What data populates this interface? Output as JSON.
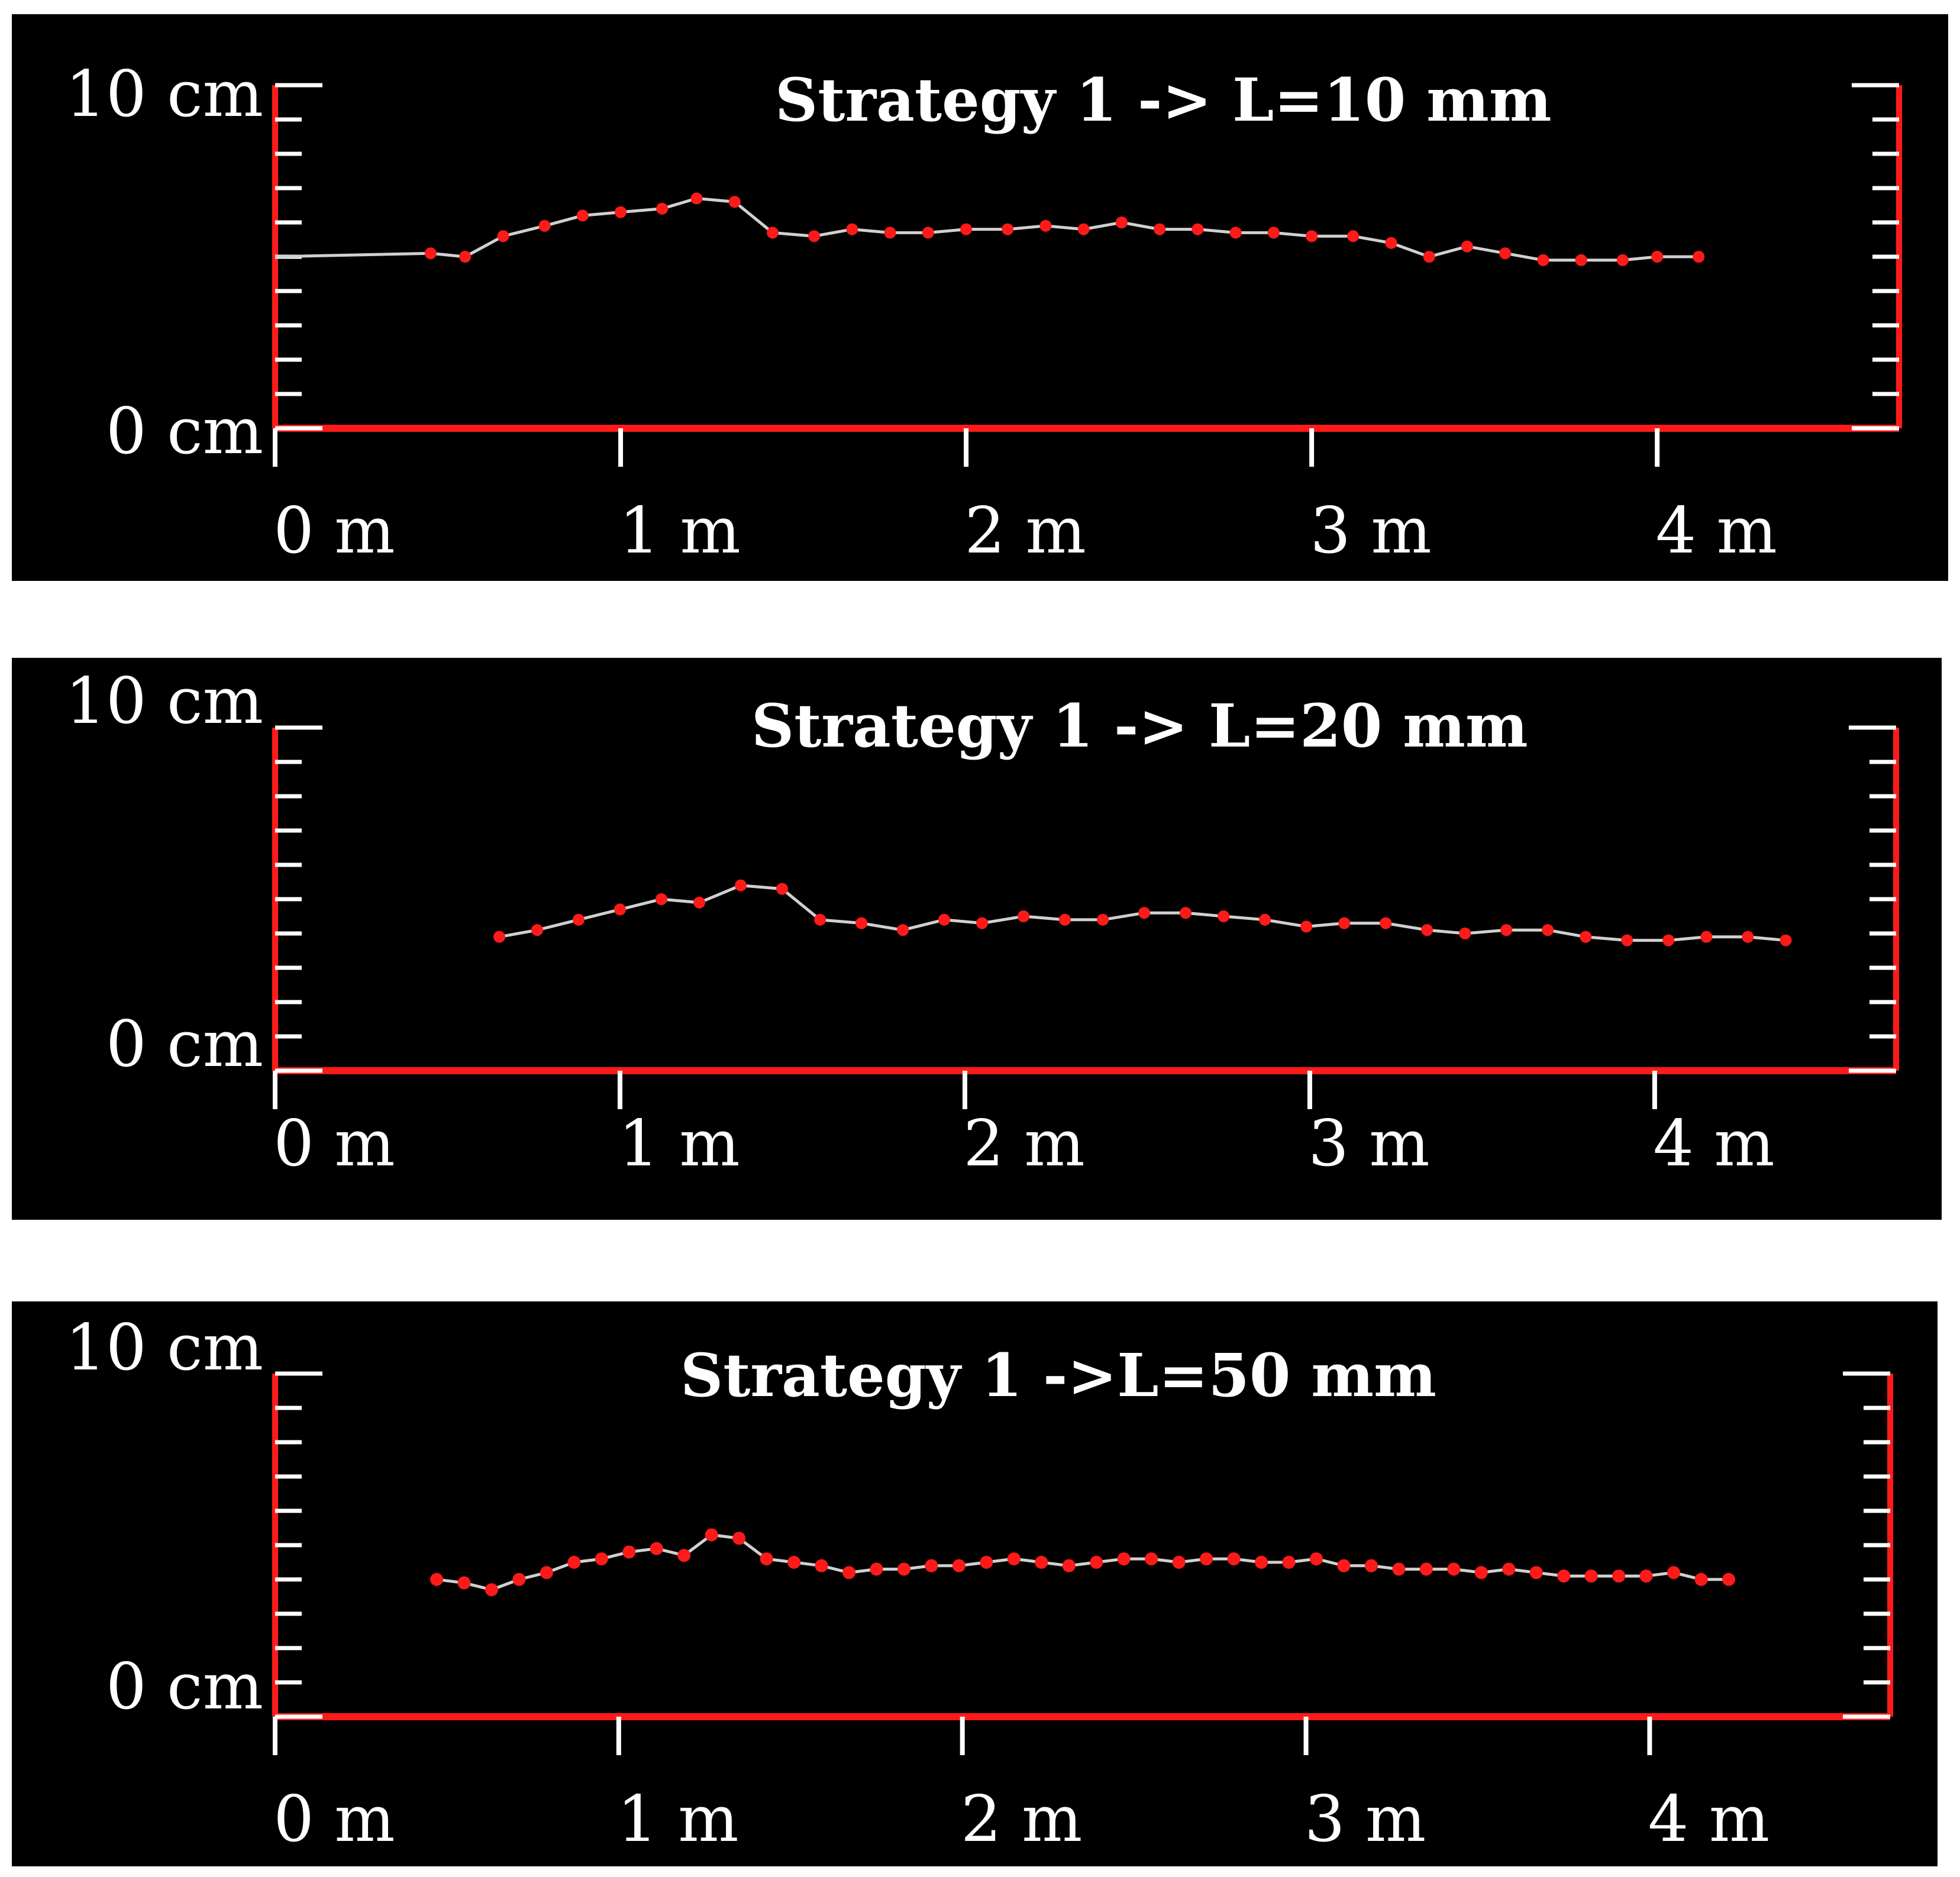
{
  "chart_data": [
    {
      "type": "line",
      "title": "Strategy 1 -> L=10 mm",
      "xlim": [
        0,
        4.7
      ],
      "ylim": [
        0,
        10
      ],
      "x_ticks": [
        "0 m",
        "1 m",
        "2 m",
        "3 m",
        "4 m"
      ],
      "y_ticks": [
        "0 cm",
        "10 cm"
      ],
      "line_color": "#d0d0d0",
      "marker_color": "#ff1a1a",
      "axis_color": "#ff1a1a",
      "x": [
        0.0,
        0.45,
        0.55,
        0.66,
        0.78,
        0.89,
        1.0,
        1.12,
        1.22,
        1.33,
        1.44,
        1.56,
        1.67,
        1.78,
        1.89,
        2.0,
        2.12,
        2.23,
        2.34,
        2.45,
        2.56,
        2.67,
        2.78,
        2.89,
        3.0,
        3.12,
        3.23,
        3.34,
        3.45,
        3.56,
        3.67,
        3.78,
        3.9,
        4.0,
        4.12
      ],
      "y": [
        5.0,
        5.1,
        5.0,
        5.6,
        5.9,
        6.2,
        6.3,
        6.4,
        6.7,
        6.6,
        5.7,
        5.6,
        5.8,
        5.7,
        5.7,
        5.8,
        5.8,
        5.9,
        5.8,
        6.0,
        5.8,
        5.8,
        5.7,
        5.7,
        5.6,
        5.6,
        5.4,
        5.0,
        5.3,
        5.1,
        4.9,
        4.9,
        4.9,
        5.0,
        5.0
      ]
    },
    {
      "type": "line",
      "title": "Strategy 1 -> L=20 mm",
      "xlim": [
        0,
        4.7
      ],
      "ylim": [
        0,
        10
      ],
      "x_ticks": [
        "0 m",
        "1 m",
        "2 m",
        "3 m",
        "4 m"
      ],
      "y_ticks": [
        "0 cm",
        "10 cm"
      ],
      "line_color": "#d0d0d0",
      "marker_color": "#ff1a1a",
      "axis_color": "#ff1a1a",
      "x": [
        0.65,
        0.76,
        0.88,
        1.0,
        1.12,
        1.23,
        1.35,
        1.47,
        1.58,
        1.7,
        1.82,
        1.94,
        2.05,
        2.17,
        2.29,
        2.4,
        2.52,
        2.64,
        2.75,
        2.87,
        2.99,
        3.1,
        3.22,
        3.34,
        3.45,
        3.57,
        3.69,
        3.8,
        3.92,
        4.04,
        4.15,
        4.27,
        4.38
      ],
      "y": [
        3.9,
        4.1,
        4.4,
        4.7,
        5.0,
        4.9,
        5.4,
        5.3,
        4.4,
        4.3,
        4.1,
        4.4,
        4.3,
        4.5,
        4.4,
        4.4,
        4.6,
        4.6,
        4.5,
        4.4,
        4.2,
        4.3,
        4.3,
        4.1,
        4.0,
        4.1,
        4.1,
        3.9,
        3.8,
        3.8,
        3.9,
        3.9,
        3.8
      ]
    },
    {
      "type": "line",
      "title": "Strategy 1 ->L=50 mm",
      "xlim": [
        0,
        4.7
      ],
      "ylim": [
        0,
        10
      ],
      "x_ticks": [
        "0 m",
        "1 m",
        "2 m",
        "3 m",
        "4 m"
      ],
      "y_ticks": [
        "0 cm",
        "10 cm"
      ],
      "line_color": "#d0d0d0",
      "marker_color": "#ff1a1a",
      "axis_color": "#ff1a1a",
      "x": [
        0.47,
        0.55,
        0.63,
        0.71,
        0.79,
        0.87,
        0.95,
        1.03,
        1.11,
        1.19,
        1.27,
        1.35,
        1.43,
        1.51,
        1.59,
        1.67,
        1.75,
        1.83,
        1.91,
        1.99,
        2.07,
        2.15,
        2.23,
        2.31,
        2.39,
        2.47,
        2.55,
        2.63,
        2.71,
        2.79,
        2.87,
        2.95,
        3.03,
        3.11,
        3.19,
        3.27,
        3.35,
        3.43,
        3.51,
        3.59,
        3.67,
        3.75,
        3.83,
        3.91,
        3.99,
        4.07,
        4.15,
        4.23
      ],
      "y": [
        4.0,
        3.9,
        3.7,
        4.0,
        4.2,
        4.5,
        4.6,
        4.8,
        4.9,
        4.7,
        5.3,
        5.2,
        4.6,
        4.5,
        4.4,
        4.2,
        4.3,
        4.3,
        4.4,
        4.4,
        4.5,
        4.6,
        4.5,
        4.4,
        4.5,
        4.6,
        4.6,
        4.5,
        4.6,
        4.6,
        4.5,
        4.5,
        4.6,
        4.4,
        4.4,
        4.3,
        4.3,
        4.3,
        4.2,
        4.3,
        4.2,
        4.1,
        4.1,
        4.1,
        4.1,
        4.2,
        4.0,
        4.0
      ]
    }
  ]
}
